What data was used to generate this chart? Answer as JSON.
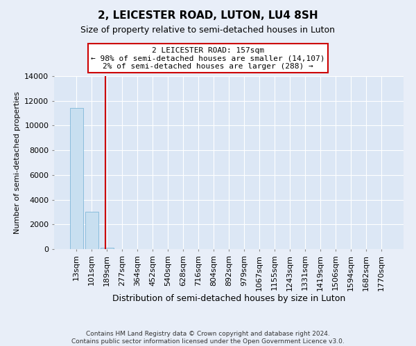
{
  "title": "2, LEICESTER ROAD, LUTON, LU4 8SH",
  "subtitle": "Size of property relative to semi-detached houses in Luton",
  "xlabel": "Distribution of semi-detached houses by size in Luton",
  "ylabel": "Number of semi-detached properties",
  "bar_labels": [
    "13sqm",
    "101sqm",
    "189sqm",
    "277sqm",
    "364sqm",
    "452sqm",
    "540sqm",
    "628sqm",
    "716sqm",
    "804sqm",
    "892sqm",
    "979sqm",
    "1067sqm",
    "1155sqm",
    "1243sqm",
    "1331sqm",
    "1419sqm",
    "1506sqm",
    "1594sqm",
    "1682sqm",
    "1770sqm"
  ],
  "bar_values": [
    11450,
    3020,
    100,
    0,
    0,
    0,
    0,
    0,
    0,
    0,
    0,
    0,
    0,
    0,
    0,
    0,
    0,
    0,
    0,
    0,
    0
  ],
  "bar_color": "#c8dff0",
  "bar_edgecolor": "#7fb8d8",
  "ylim": [
    0,
    14000
  ],
  "yticks": [
    0,
    2000,
    4000,
    6000,
    8000,
    10000,
    12000,
    14000
  ],
  "vline_x": 1.88,
  "vline_color": "#cc0000",
  "annotation_title": "2 LEICESTER ROAD: 157sqm",
  "annotation_line1": "← 98% of semi-detached houses are smaller (14,107)",
  "annotation_line2": "2% of semi-detached houses are larger (288) →",
  "annotation_box_facecolor": "#ffffff",
  "annotation_box_edgecolor": "#cc0000",
  "footer1": "Contains HM Land Registry data © Crown copyright and database right 2024.",
  "footer2": "Contains public sector information licensed under the Open Government Licence v3.0.",
  "fig_facecolor": "#e8eef8",
  "plot_facecolor": "#dce7f5",
  "grid_color": "#ffffff",
  "title_fontsize": 11,
  "subtitle_fontsize": 9,
  "ylabel_fontsize": 8,
  "xlabel_fontsize": 9,
  "tick_fontsize": 8,
  "footer_fontsize": 6.5
}
